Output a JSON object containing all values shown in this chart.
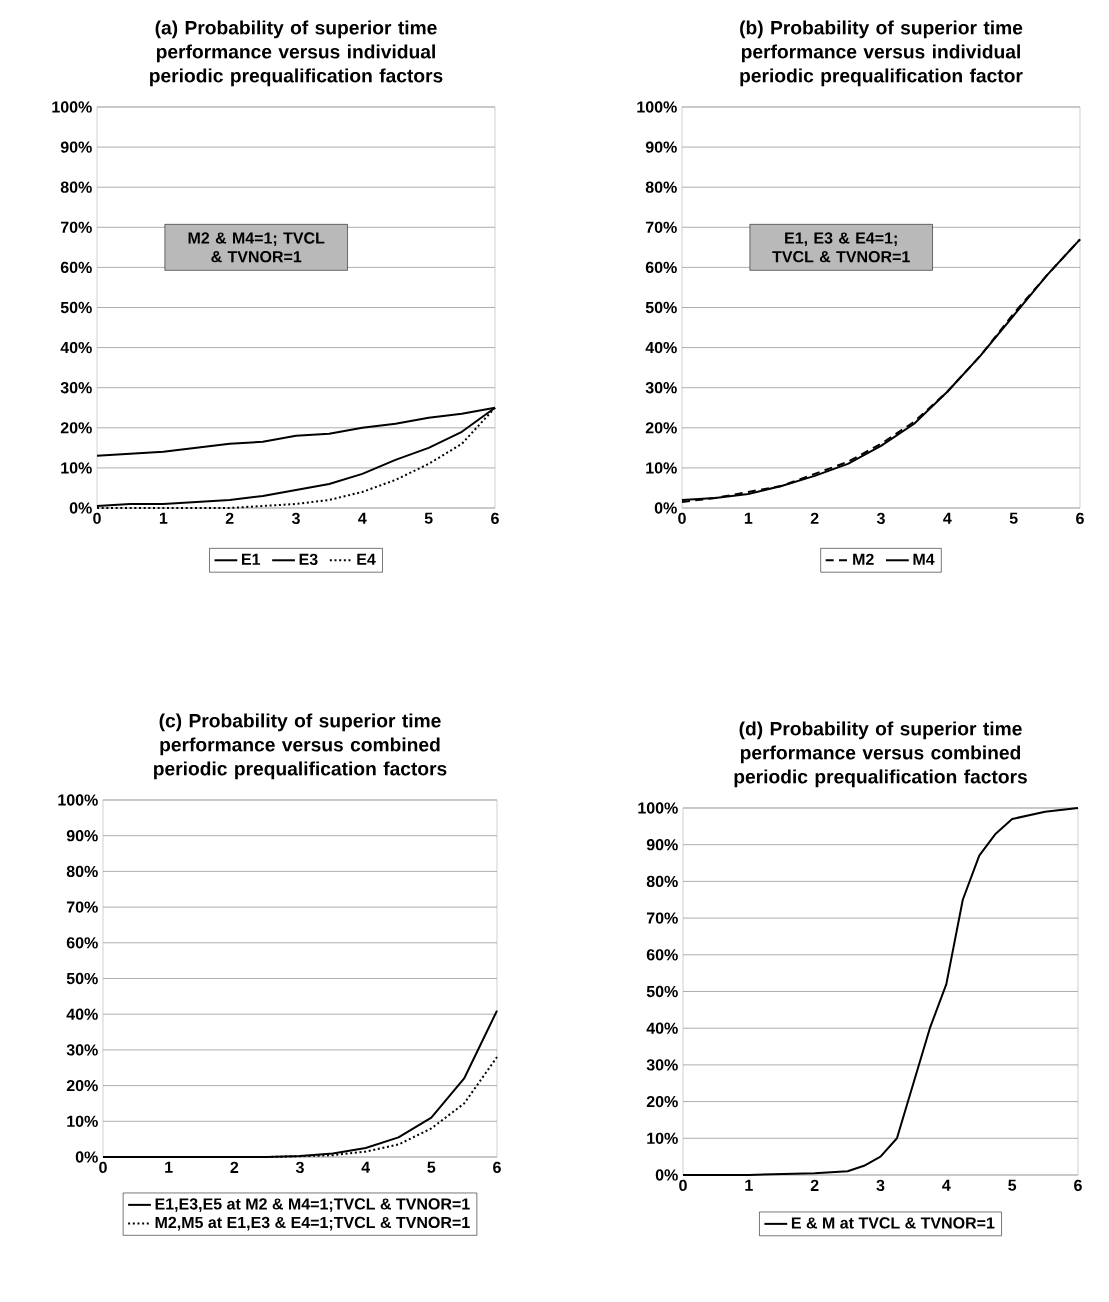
{
  "chart_data": [
    {
      "type": "line",
      "title": "(a) Probability of superior time performance versus individual periodic prequalification factors",
      "x": [
        0,
        0.5,
        1,
        1.5,
        2,
        2.5,
        3,
        3.5,
        4,
        4.5,
        5,
        5.5,
        6
      ],
      "series": [
        {
          "name": "E1",
          "color": "#000000",
          "line_style": "solid",
          "values": [
            13,
            13.5,
            14,
            15,
            16,
            16.5,
            18,
            18.5,
            20,
            21,
            22.5,
            23.5,
            25
          ]
        },
        {
          "name": "E3",
          "color": "#000000",
          "line_style": "solid",
          "values": [
            0.5,
            1,
            1,
            1.5,
            2,
            3,
            4.5,
            6,
            8.5,
            12,
            15,
            19,
            25
          ]
        },
        {
          "name": "E4",
          "color": "#000000",
          "line_style": "dotted",
          "values": [
            0,
            0,
            0,
            0,
            0,
            0.5,
            1,
            2,
            4,
            7,
            11,
            16,
            25
          ]
        }
      ],
      "annotations": [
        "M2 & M4=1; TVCL & TVNOR=1"
      ],
      "xlim": [
        0,
        6
      ],
      "xticks": [
        0,
        1,
        2,
        3,
        4,
        5,
        6
      ],
      "ylim": [
        0,
        100
      ],
      "yticks": [
        {
          "value": 0,
          "label": "0%"
        },
        {
          "value": 10,
          "label": "10%"
        },
        {
          "value": 20,
          "label": "20%"
        },
        {
          "value": 30,
          "label": "30%"
        },
        {
          "value": 40,
          "label": "40%"
        },
        {
          "value": 50,
          "label": "50%"
        },
        {
          "value": 60,
          "label": "60%"
        },
        {
          "value": 70,
          "label": "70%"
        },
        {
          "value": 80,
          "label": "80%"
        },
        {
          "value": 90,
          "label": "90%"
        },
        {
          "value": 100,
          "label": "100%"
        }
      ],
      "grid": "y",
      "legend": "bottom"
    },
    {
      "type": "line",
      "title": "(b) Probability of superior time performance versus individual periodic prequalification factor",
      "x": [
        0,
        0.5,
        1,
        1.5,
        2,
        2.5,
        3,
        3.5,
        4,
        4.5,
        5,
        5.5,
        6
      ],
      "series": [
        {
          "name": "M2",
          "color": "#000000",
          "line_style": "dashed",
          "values": [
            1.5,
            2.5,
            4,
            5.5,
            8.5,
            11.5,
            16,
            21.5,
            29,
            38,
            48.5,
            58,
            67
          ]
        },
        {
          "name": "M4",
          "color": "#000000",
          "line_style": "solid",
          "values": [
            2,
            2.5,
            3.5,
            5.5,
            8,
            11,
            15.5,
            21,
            29,
            38,
            48,
            58,
            67
          ]
        }
      ],
      "annotations": [
        "E1, E3 & E4=1; TVCL & TVNOR=1"
      ],
      "xlim": [
        0,
        6
      ],
      "xticks": [
        0,
        1,
        2,
        3,
        4,
        5,
        6
      ],
      "ylim": [
        0,
        100
      ],
      "yticks": [
        {
          "value": 0,
          "label": "0%"
        },
        {
          "value": 10,
          "label": "10%"
        },
        {
          "value": 20,
          "label": "20%"
        },
        {
          "value": 30,
          "label": "30%"
        },
        {
          "value": 40,
          "label": "40%"
        },
        {
          "value": 50,
          "label": "50%"
        },
        {
          "value": 60,
          "label": "60%"
        },
        {
          "value": 70,
          "label": "70%"
        },
        {
          "value": 80,
          "label": "80%"
        },
        {
          "value": 90,
          "label": "90%"
        },
        {
          "value": 100,
          "label": "100%"
        }
      ],
      "grid": "y",
      "legend": "bottom"
    },
    {
      "type": "line",
      "title": "(c) Probability of superior time performance versus combined periodic prequalification factors",
      "x": [
        0,
        0.5,
        1,
        1.5,
        2,
        2.5,
        3,
        3.5,
        4,
        4.5,
        5,
        5.5,
        6
      ],
      "series": [
        {
          "name": "E1,E3,E5 at M2 & M4=1;TVCL & TVNOR=1",
          "color": "#000000",
          "line_style": "solid",
          "values": [
            0,
            0,
            0,
            0,
            0,
            0,
            0.3,
            1,
            2.5,
            5.5,
            11,
            22,
            41
          ]
        },
        {
          "name": "M2,M5 at E1,E3 & E4=1;TVCL & TVNOR=1",
          "color": "#000000",
          "line_style": "dotted",
          "values": [
            0,
            0,
            0,
            0,
            0,
            0,
            0.2,
            0.5,
            1.5,
            3.5,
            8,
            15,
            28
          ]
        }
      ],
      "xlim": [
        0,
        6
      ],
      "xticks": [
        0,
        1,
        2,
        3,
        4,
        5,
        6
      ],
      "ylim": [
        0,
        100
      ],
      "yticks": [
        {
          "value": 0,
          "label": "0%"
        },
        {
          "value": 10,
          "label": "10%"
        },
        {
          "value": 20,
          "label": "20%"
        },
        {
          "value": 30,
          "label": "30%"
        },
        {
          "value": 40,
          "label": "40%"
        },
        {
          "value": 50,
          "label": "50%"
        },
        {
          "value": 60,
          "label": "60%"
        },
        {
          "value": 70,
          "label": "70%"
        },
        {
          "value": 80,
          "label": "80%"
        },
        {
          "value": 90,
          "label": "90%"
        },
        {
          "value": 100,
          "label": "100%"
        }
      ],
      "grid": "y",
      "legend": "bottom"
    },
    {
      "type": "line",
      "title": "(d) Probability of superior time performance versus combined periodic prequalification factors",
      "x": [
        0,
        1,
        2,
        2.5,
        2.75,
        3,
        3.25,
        3.5,
        3.75,
        4,
        4.25,
        4.5,
        4.75,
        5,
        5.5,
        6
      ],
      "series": [
        {
          "name": "E & M at TVCL & TVNOR=1",
          "color": "#000000",
          "line_style": "solid",
          "values": [
            0,
            0,
            0.5,
            1,
            2.5,
            5,
            10,
            25,
            40,
            52,
            75,
            87,
            93,
            97,
            99,
            100
          ]
        }
      ],
      "xlim": [
        0,
        6
      ],
      "xticks": [
        0,
        1,
        2,
        3,
        4,
        5,
        6
      ],
      "ylim": [
        0,
        100
      ],
      "yticks": [
        {
          "value": 0,
          "label": "0%"
        },
        {
          "value": 10,
          "label": "10%"
        },
        {
          "value": 20,
          "label": "20%"
        },
        {
          "value": 30,
          "label": "30%"
        },
        {
          "value": 40,
          "label": "40%"
        },
        {
          "value": 50,
          "label": "50%"
        },
        {
          "value": 60,
          "label": "60%"
        },
        {
          "value": 70,
          "label": "70%"
        },
        {
          "value": 80,
          "label": "80%"
        },
        {
          "value": 90,
          "label": "90%"
        },
        {
          "value": 100,
          "label": "100%"
        }
      ],
      "grid": "y",
      "legend": "bottom"
    }
  ]
}
